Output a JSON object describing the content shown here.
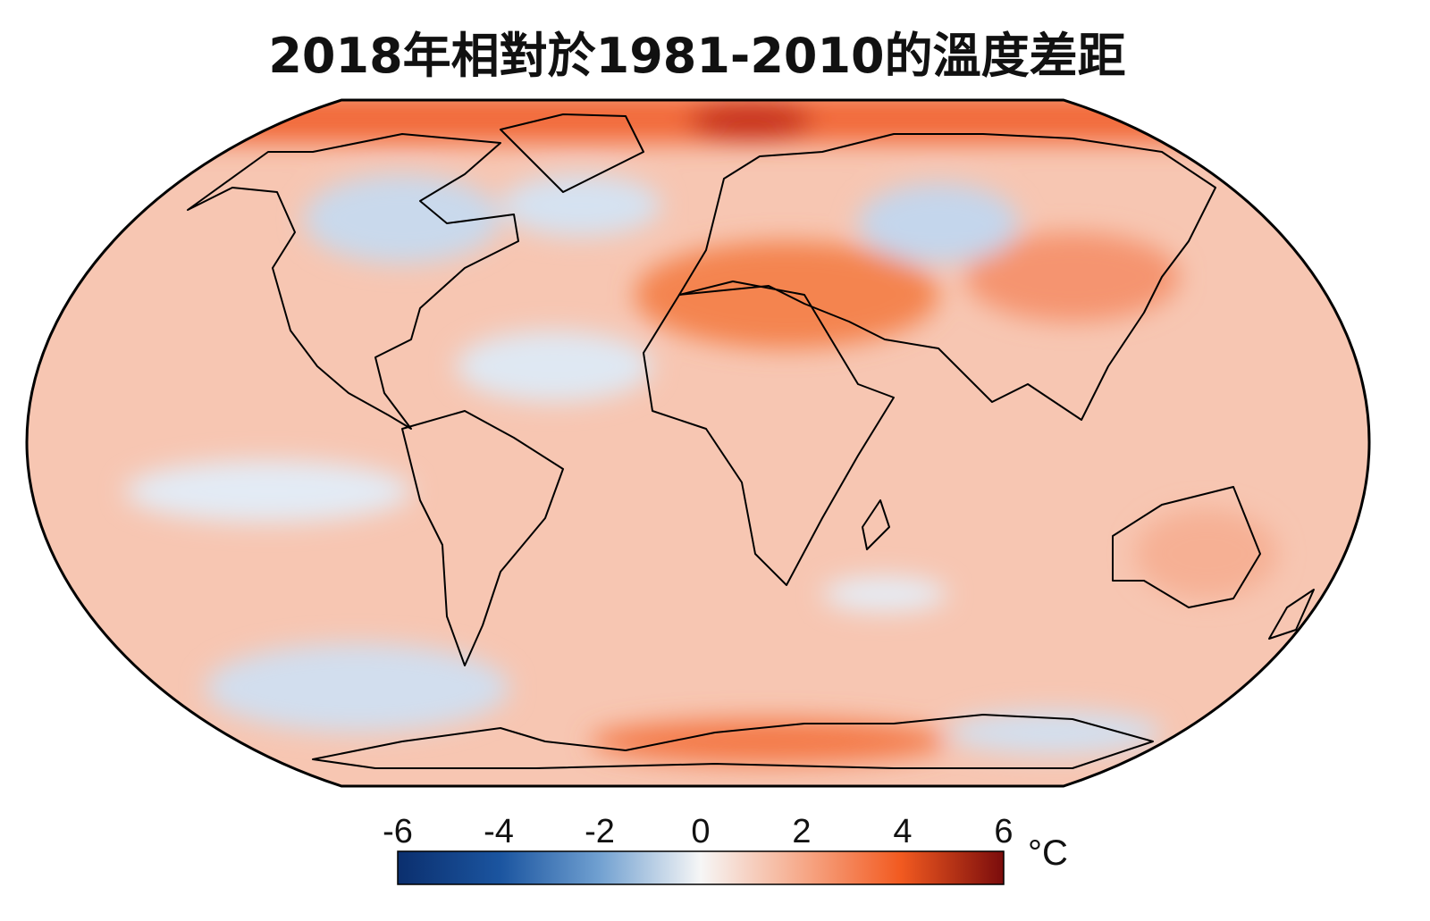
{
  "title": "2018年相對於1981-2010的溫度差距",
  "colorbar": {
    "ticks": [
      "-6",
      "-4",
      "-2",
      "0",
      "2",
      "4",
      "6"
    ],
    "tick_values": [
      -6,
      -4,
      -2,
      0,
      2,
      4,
      6
    ],
    "range": [
      -6,
      6
    ],
    "unit": "°C",
    "colors": {
      "min": "#0b2f6e",
      "mid_cool": "#6f9fd0",
      "zero": "#f6f6f6",
      "mid_warm": "#f6a888",
      "hot": "#f25a20",
      "max": "#7a0c0c"
    }
  },
  "map": {
    "projection": "Robinson",
    "ocean_base_color": "#f7c6b2",
    "coastline_color": "#000000"
  }
}
